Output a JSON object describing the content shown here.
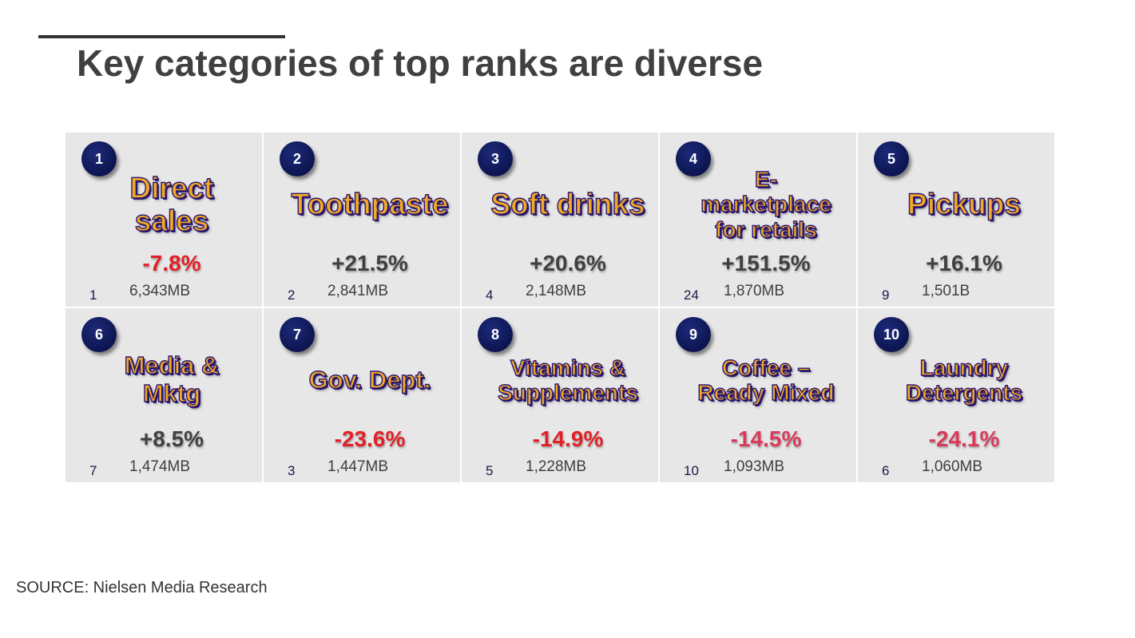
{
  "title": "Key categories of top ranks are diverse",
  "source": "SOURCE: Nielsen Media Research",
  "colors": {
    "badge": "#0c1550",
    "category_fill": "#f1a926",
    "category_outline": "#2b1670",
    "negative": "#e21f26",
    "negative_rose": "#d93a5b",
    "positive": "#404040",
    "cell_bg": "#e7e7e7"
  },
  "cells": [
    {
      "rank": "1",
      "lines": [
        "Direct",
        "sales"
      ],
      "change": "-7.8%",
      "volume": "6,343MB",
      "prev_rank": "1"
    },
    {
      "rank": "2",
      "lines": [
        "Toothpaste"
      ],
      "change": "+21.5%",
      "volume": "2,841MB",
      "prev_rank": "2"
    },
    {
      "rank": "3",
      "lines": [
        "Soft drinks"
      ],
      "change": "+20.6%",
      "volume": "2,148MB",
      "prev_rank": "4"
    },
    {
      "rank": "4",
      "lines": [
        "E-",
        "marketplace",
        "for retails"
      ],
      "change": "+151.5%",
      "volume": "1,870MB",
      "prev_rank": "24"
    },
    {
      "rank": "5",
      "lines": [
        "Pickups"
      ],
      "change": "+16.1%",
      "volume": "1,501B",
      "prev_rank": "9"
    },
    {
      "rank": "6",
      "lines": [
        "Media &",
        "Mktg"
      ],
      "change": "+8.5%",
      "volume": "1,474MB",
      "prev_rank": "7"
    },
    {
      "rank": "7",
      "lines": [
        "Gov. Dept."
      ],
      "change": "-23.6%",
      "volume": "1,447MB",
      "prev_rank": "3"
    },
    {
      "rank": "8",
      "lines": [
        "Vitamins &",
        "Supplements"
      ],
      "change": "-14.9%",
      "volume": "1,228MB",
      "prev_rank": "5"
    },
    {
      "rank": "9",
      "lines": [
        "Coffee –",
        "Ready Mixed"
      ],
      "change": "-14.5%",
      "volume": "1,093MB",
      "prev_rank": "10"
    },
    {
      "rank": "10",
      "lines": [
        "Laundry",
        "Detergents"
      ],
      "change": "-24.1%",
      "volume": "1,060MB",
      "prev_rank": "6"
    }
  ]
}
